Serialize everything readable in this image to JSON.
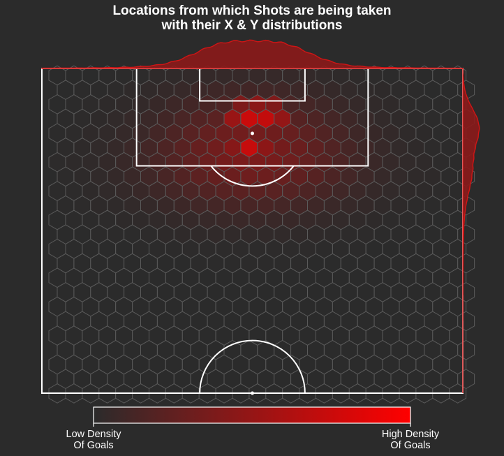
{
  "chart_data": {
    "type": "heatmap",
    "title": "Locations from which Shots are being taken\nwith their X & Y distributions",
    "colorbar": {
      "low_label": "Low Density\nOf Goals",
      "high_label": "High Density\nOf Goals"
    },
    "colors": {
      "background": "#2b2b2b",
      "low": "#2b2b2b",
      "high": "#ff0000",
      "lines": "#ffffff",
      "hex_edge": "#5a5a5a",
      "kde_fill": "#8b1a1a",
      "kde_edge": "#d01515"
    },
    "pitch": {
      "x_range": [
        0,
        80
      ],
      "y_range": [
        60,
        120
      ]
    },
    "peak": {
      "x": 40,
      "y": 105.5
    },
    "hotspots": [
      {
        "x": 38.8,
        "y": 106.2,
        "value": 1.0
      },
      {
        "x": 38.8,
        "y": 110.0,
        "value": 0.95
      },
      {
        "x": 42.0,
        "y": 110.0,
        "value": 0.9
      },
      {
        "x": 35.5,
        "y": 110.0,
        "value": 0.7
      },
      {
        "x": 45.3,
        "y": 110.0,
        "value": 0.6
      },
      {
        "x": 35.5,
        "y": 106.2,
        "value": 0.62
      },
      {
        "x": 42.0,
        "y": 106.2,
        "value": 0.62
      },
      {
        "x": 40.4,
        "y": 113.4,
        "value": 0.5
      },
      {
        "x": 37.1,
        "y": 113.4,
        "value": 0.45
      },
      {
        "x": 43.7,
        "y": 113.4,
        "value": 0.42
      }
    ]
  }
}
